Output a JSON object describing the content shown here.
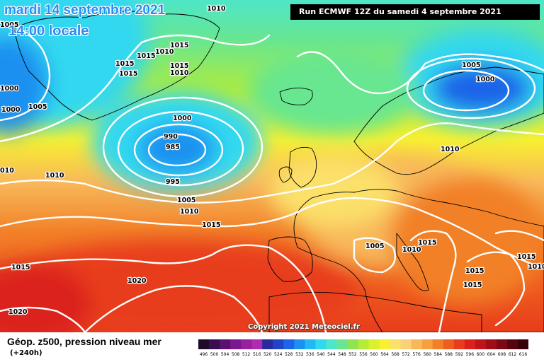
{
  "header": {
    "date_line": "mardi 14 septembre 2021",
    "time_line": "14:00 locale",
    "run_info": "Run ECMWF 12Z du samedi 4 septembre 2021"
  },
  "copyright": "Copyright 2021 Meteociel.fr",
  "footer": {
    "title": "Géop. z500, pression niveau mer",
    "subtitle": "(+240h)"
  },
  "legend": {
    "values": [
      "496",
      "500",
      "504",
      "508",
      "512",
      "516",
      "520",
      "524",
      "528",
      "532",
      "536",
      "540",
      "544",
      "548",
      "552",
      "556",
      "560",
      "564",
      "568",
      "572",
      "576",
      "580",
      "584",
      "588",
      "592",
      "596",
      "600",
      "604",
      "608",
      "612",
      "616"
    ],
    "colors": [
      "#1e0a2a",
      "#3a0d4e",
      "#5a1070",
      "#7a1890",
      "#96209e",
      "#b02ab0",
      "#2a2a9e",
      "#2242c8",
      "#1e64e8",
      "#1e90f0",
      "#22b8f4",
      "#30d8f0",
      "#4ee6c8",
      "#68e690",
      "#8ee452",
      "#b4ec36",
      "#dcf02c",
      "#f8f030",
      "#fbe06a",
      "#fad07a",
      "#f8b85a",
      "#f6a040",
      "#f28028",
      "#ee5e1e",
      "#e83c1c",
      "#dc201c",
      "#c0141c",
      "#a00c18",
      "#7c0814",
      "#580410",
      "#380008"
    ]
  },
  "isobars": [
    {
      "label": "1010",
      "color": "#000000"
    },
    {
      "label": "1005",
      "color": "#000000"
    },
    {
      "label": "1015",
      "color": "#000000"
    },
    {
      "label": "1010",
      "color": "#000000"
    },
    {
      "label": "1015",
      "color": "#000000"
    },
    {
      "label": "1015",
      "color": "#000000"
    },
    {
      "label": "1015",
      "color": "#000000"
    },
    {
      "label": "1010",
      "color": "#000000"
    },
    {
      "label": "1015",
      "color": "#000000"
    },
    {
      "label": "1000",
      "color": "#000000"
    },
    {
      "label": "1000",
      "color": "#000000"
    },
    {
      "label": "1005",
      "color": "#000000"
    },
    {
      "label": "1000",
      "color": "#000000"
    },
    {
      "label": "990",
      "color": "#000000"
    },
    {
      "label": "985",
      "color": "#000000"
    },
    {
      "label": "995",
      "color": "#000000"
    },
    {
      "label": "010",
      "color": "#000000"
    },
    {
      "label": "1010",
      "color": "#000000"
    },
    {
      "label": "1005",
      "color": "#000000"
    },
    {
      "label": "1010",
      "color": "#000000"
    },
    {
      "label": "1015",
      "color": "#000000"
    },
    {
      "label": "1015",
      "color": "#000000"
    },
    {
      "label": "1020",
      "color": "#000000"
    },
    {
      "label": "1020",
      "color": "#000000"
    },
    {
      "label": "1005",
      "color": "#000000"
    },
    {
      "label": "1000",
      "color": "#000000"
    },
    {
      "label": "1010",
      "color": "#000000"
    },
    {
      "label": "1005",
      "color": "#000000"
    },
    {
      "label": "1010",
      "color": "#000000"
    },
    {
      "label": "1015",
      "color": "#000000"
    },
    {
      "label": "1015",
      "color": "#000000"
    },
    {
      "label": "1015",
      "color": "#000000"
    },
    {
      "label": "1010",
      "color": "#000000"
    },
    {
      "label": "1015",
      "color": "#000000"
    }
  ]
}
